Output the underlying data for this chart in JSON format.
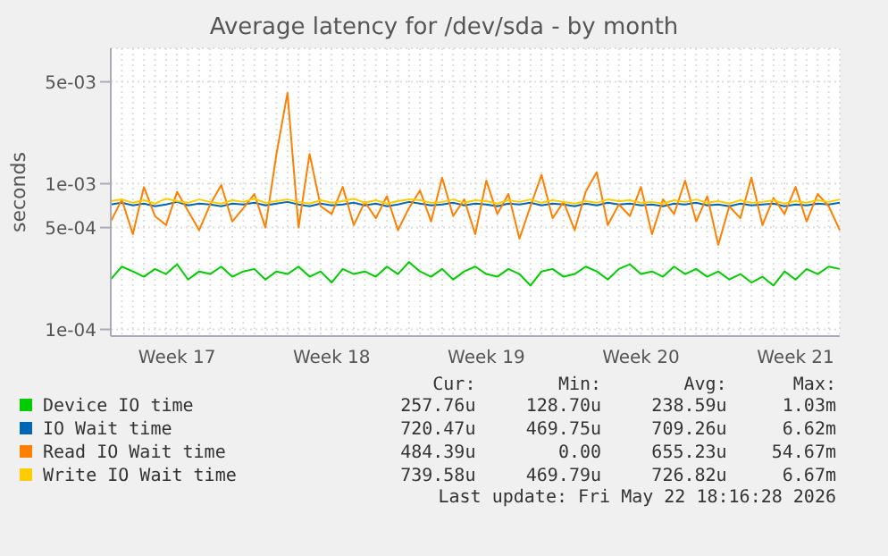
{
  "chart_data": {
    "type": "line",
    "title": "Average latency for /dev/sda - by month",
    "ylabel": "seconds",
    "log": true,
    "grid": true,
    "legend": "bottom",
    "marker": "none",
    "line_style": "solid",
    "categories": [
      null,
      null,
      null,
      null,
      null,
      null,
      "Week 17",
      null,
      null,
      null,
      null,
      null,
      null,
      null,
      null,
      null,
      null,
      null,
      null,
      null,
      "Week 18",
      null,
      null,
      null,
      null,
      null,
      null,
      null,
      null,
      null,
      null,
      null,
      null,
      null,
      "Week 19",
      null,
      null,
      null,
      null,
      null,
      null,
      null,
      null,
      null,
      null,
      null,
      null,
      null,
      "Week 20",
      null,
      null,
      null,
      null,
      null,
      null,
      null,
      null,
      null,
      null,
      null,
      null,
      null,
      "Week 21",
      null,
      null,
      null,
      null
    ],
    "ylim": [
      9e-05,
      0.0085
    ],
    "yticks": [
      {
        "value": 0.0001,
        "label": "1e-04"
      },
      {
        "value": 0.0005,
        "label": "5e-04"
      },
      {
        "value": 0.001,
        "label": "1e-03"
      },
      {
        "value": 0.005,
        "label": "5e-03"
      }
    ],
    "series": [
      {
        "name": "Device IO time",
        "color": "#00cc00",
        "values": [
          0.00022,
          0.00027,
          0.00025,
          0.00023,
          0.00026,
          0.00024,
          0.00028,
          0.00022,
          0.00025,
          0.00024,
          0.00027,
          0.00023,
          0.00025,
          0.00026,
          0.00022,
          0.00025,
          0.00024,
          0.00027,
          0.00023,
          0.00025,
          0.00021,
          0.00026,
          0.00024,
          0.00025,
          0.00023,
          0.00027,
          0.00024,
          0.00029,
          0.00025,
          0.00023,
          0.00026,
          0.00022,
          0.00025,
          0.00027,
          0.00024,
          0.00023,
          0.00026,
          0.00024,
          0.0002,
          0.00025,
          0.00026,
          0.00023,
          0.00024,
          0.00027,
          0.00025,
          0.00022,
          0.00026,
          0.00028,
          0.00024,
          0.00025,
          0.00023,
          0.00027,
          0.00024,
          0.00026,
          0.00023,
          0.00025,
          0.00022,
          0.00024,
          0.00021,
          0.00023,
          0.0002,
          0.00025,
          0.00022,
          0.00026,
          0.00024,
          0.00027,
          0.00026
        ]
      },
      {
        "name": "IO Wait time",
        "color": "#0066b3",
        "values": [
          0.00072,
          0.00074,
          0.00071,
          0.00073,
          0.0007,
          0.00072,
          0.00075,
          0.00071,
          0.00073,
          0.00072,
          0.0007,
          0.00073,
          0.00072,
          0.00074,
          0.00071,
          0.00073,
          0.00075,
          0.00072,
          0.0007,
          0.00073,
          0.00071,
          0.00072,
          0.00074,
          0.00071,
          0.00073,
          0.0007,
          0.00072,
          0.00075,
          0.00073,
          0.00071,
          0.00072,
          0.00074,
          0.00071,
          0.00073,
          0.00072,
          0.0007,
          0.00073,
          0.00072,
          0.00074,
          0.00071,
          0.00073,
          0.00072,
          0.0007,
          0.00073,
          0.00071,
          0.00074,
          0.00072,
          0.00073,
          0.00071,
          0.00072,
          0.0007,
          0.00073,
          0.00072,
          0.00074,
          0.00071,
          0.00072,
          0.0007,
          0.00073,
          0.00071,
          0.00072,
          0.00073,
          0.0007,
          0.00072,
          0.00071,
          0.00073,
          0.00072,
          0.00074
        ]
      },
      {
        "name": "Read IO Wait time",
        "color": "#ff8000",
        "values": [
          0.00055,
          0.00078,
          0.00045,
          0.00095,
          0.0006,
          0.00052,
          0.00088,
          0.00065,
          0.00048,
          0.00072,
          0.00098,
          0.00055,
          0.00068,
          0.00085,
          0.0005,
          0.0016,
          0.0042,
          0.0005,
          0.0016,
          0.0007,
          0.00062,
          0.00095,
          0.00052,
          0.00075,
          0.00058,
          0.00082,
          0.00048,
          0.00068,
          0.0009,
          0.00055,
          0.0011,
          0.0006,
          0.00078,
          0.00045,
          0.00105,
          0.00062,
          0.00085,
          0.00042,
          0.0007,
          0.00115,
          0.00058,
          0.00075,
          0.00048,
          0.00088,
          0.0012,
          0.00052,
          0.00072,
          0.0006,
          0.00095,
          0.00045,
          0.00078,
          0.00062,
          0.00105,
          0.00055,
          0.00082,
          0.00038,
          0.0007,
          0.00058,
          0.0011,
          0.00052,
          0.0008,
          0.00062,
          0.00095,
          0.00055,
          0.00085,
          0.0007,
          0.00048
        ]
      },
      {
        "name": "Write IO Wait time",
        "color": "#ffcc00",
        "values": [
          0.00076,
          0.00078,
          0.00074,
          0.00077,
          0.00073,
          0.00079,
          0.00076,
          0.00074,
          0.00078,
          0.00075,
          0.00073,
          0.00077,
          0.00075,
          0.00079,
          0.00074,
          0.00076,
          0.00078,
          0.00075,
          0.00073,
          0.00077,
          0.00074,
          0.00076,
          0.00079,
          0.00074,
          0.00077,
          0.00073,
          0.00076,
          0.00078,
          0.00077,
          0.00074,
          0.00075,
          0.00078,
          0.00074,
          0.00077,
          0.00076,
          0.00073,
          0.00077,
          0.00075,
          0.00078,
          0.00074,
          0.00077,
          0.00075,
          0.00073,
          0.00076,
          0.00074,
          0.00078,
          0.00076,
          0.00077,
          0.00074,
          0.00075,
          0.00073,
          0.00077,
          0.00075,
          0.00078,
          0.00074,
          0.00076,
          0.00073,
          0.00077,
          0.00074,
          0.00075,
          0.00077,
          0.00073,
          0.00076,
          0.00074,
          0.00077,
          0.00075,
          0.00078
        ]
      }
    ],
    "annotations": [
      "Cur:",
      "Min:",
      "Avg:",
      "Max:",
      "257.76u",
      "128.70u",
      "238.59u",
      "1.03m",
      "720.47u",
      "469.75u",
      "709.26u",
      "6.62m",
      "484.39u",
      "0.00",
      "655.23u",
      "54.67m",
      "739.58u",
      "469.79u",
      "726.82u",
      "6.67m",
      "Last update: Fri May 22 18:16:28 2026"
    ]
  }
}
